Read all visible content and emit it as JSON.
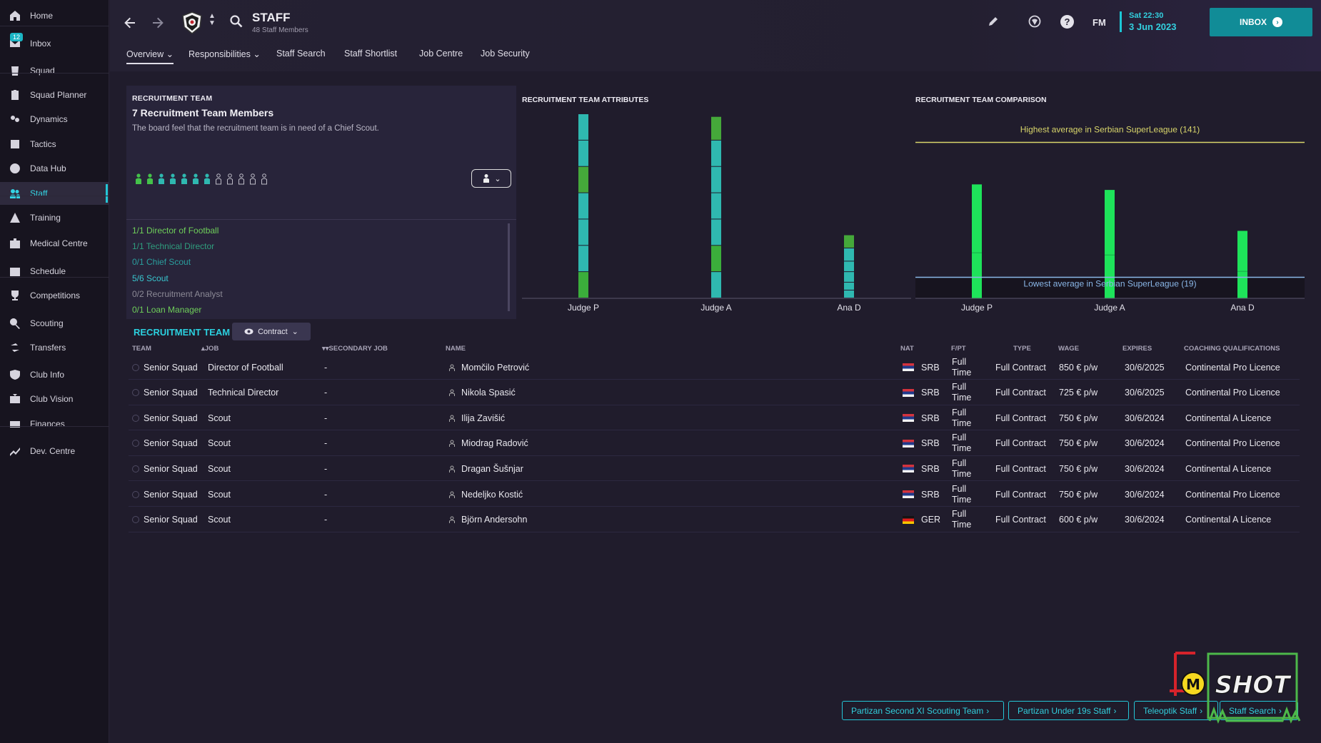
{
  "sidebar": {
    "inbox_badge": "12",
    "items": [
      {
        "label": "Home",
        "icon": "home-icon"
      },
      {
        "label": "Inbox",
        "icon": "inbox-icon"
      },
      {
        "label": "Squad",
        "icon": "squad-icon"
      },
      {
        "label": "Squad Planner",
        "icon": "clipboard-icon"
      },
      {
        "label": "Dynamics",
        "icon": "dynamics-icon"
      },
      {
        "label": "Tactics",
        "icon": "tactics-icon"
      },
      {
        "label": "Data Hub",
        "icon": "data-hub-icon"
      },
      {
        "label": "Staff",
        "icon": "staff-icon"
      },
      {
        "label": "Training",
        "icon": "training-icon"
      },
      {
        "label": "Medical Centre",
        "icon": "medical-icon"
      },
      {
        "label": "Schedule",
        "icon": "calendar-icon"
      },
      {
        "label": "Competitions",
        "icon": "trophy-icon"
      },
      {
        "label": "Scouting",
        "icon": "magnifier-icon"
      },
      {
        "label": "Transfers",
        "icon": "transfer-icon"
      },
      {
        "label": "Club Info",
        "icon": "shield-icon"
      },
      {
        "label": "Club Vision",
        "icon": "vision-icon"
      },
      {
        "label": "Finances",
        "icon": "finances-icon"
      },
      {
        "label": "Dev. Centre",
        "icon": "dev-centre-icon"
      }
    ]
  },
  "header": {
    "title": "STAFF",
    "subtitle": "48 Staff Members",
    "tabs": [
      "Overview",
      "Responsibilities",
      "Staff Search",
      "Staff Shortlist",
      "Job Centre",
      "Job Security"
    ],
    "game_label": "FM",
    "date_day": "Sat 22:30",
    "date_full": "3 Jun 2023",
    "inbox_label": "INBOX"
  },
  "team_panel": {
    "caption": "RECRUITMENT TEAM",
    "heading": "7 Recruitment Team Members",
    "description": "The board feel that the recruitment team is in need of a Chief Scout.",
    "filled_slots": 7,
    "total_slots": 12,
    "roles": [
      {
        "label": "1/1 Director of Football",
        "color": "#6fcf5a"
      },
      {
        "label": "1/1 Technical Director",
        "color": "#2f9e7e"
      },
      {
        "label": "0/1 Chief Scout",
        "color": "#2a9e9e"
      },
      {
        "label": "5/6 Scout",
        "color": "#38c6cf"
      },
      {
        "label": "0/2 Recruitment Analyst",
        "color": "#8c8a96"
      },
      {
        "label": "0/1 Loan Manager",
        "color": "#6fcf5a"
      }
    ]
  },
  "chart_data": [
    {
      "type": "bar",
      "title": "RECRUITMENT TEAM ATTRIBUTES",
      "categories": [
        "Judge P",
        "Judge A",
        "Ana D"
      ],
      "stacked": true,
      "segments": [
        [
          {
            "value": 20,
            "color": "#3bae3b"
          },
          {
            "value": 20,
            "color": "#2fb8b0"
          },
          {
            "value": 20,
            "color": "#2fb8b0"
          },
          {
            "value": 20,
            "color": "#2fb8b0"
          },
          {
            "value": 20,
            "color": "#45a83a"
          },
          {
            "value": 20,
            "color": "#2fb8b0"
          },
          {
            "value": 20,
            "color": "#2fb8b0"
          }
        ],
        [
          {
            "value": 20,
            "color": "#2fb8b0"
          },
          {
            "value": 20,
            "color": "#3bae3b"
          },
          {
            "value": 20,
            "color": "#2fb8b0"
          },
          {
            "value": 20,
            "color": "#2fb8b0"
          },
          {
            "value": 20,
            "color": "#2fb8b0"
          },
          {
            "value": 20,
            "color": "#2fb8b0"
          },
          {
            "value": 18,
            "color": "#45a83a"
          }
        ],
        [
          {
            "value": 6,
            "color": "#2fb8b0"
          },
          {
            "value": 6,
            "color": "#2fb8b0"
          },
          {
            "value": 8,
            "color": "#2fb8b0"
          },
          {
            "value": 8,
            "color": "#2fb8b0"
          },
          {
            "value": 10,
            "color": "#2fb8b0"
          },
          {
            "value": 10,
            "color": "#45a83a"
          }
        ]
      ],
      "ylim": [
        0,
        140
      ]
    },
    {
      "type": "bar",
      "title": "RECRUITMENT TEAM COMPARISON",
      "categories": [
        "Judge P",
        "Judge A",
        "Ana D"
      ],
      "values": [
        103,
        98,
        61
      ],
      "color": "#1ee35a",
      "reference_lines": [
        {
          "label": "Highest average in Serbian SuperLeague (141)",
          "value": 141,
          "color": "#d9d66b"
        },
        {
          "label": "Lowest average in Serbian SuperLeague (19)",
          "value": 19,
          "color": "#8ab7e8"
        }
      ],
      "ylim": [
        0,
        160
      ]
    }
  ],
  "table": {
    "title": "RECRUITMENT TEAM",
    "view_button": "Contract",
    "headers": [
      "TEAM",
      "JOB",
      "SECONDARY JOB",
      "NAME",
      "NAT",
      "F/PT",
      "TYPE",
      "WAGE",
      "EXPIRES",
      "COACHING QUALIFICATIONS"
    ],
    "rows": [
      {
        "team": "Senior Squad",
        "job": "Director of Football",
        "secondary": "-",
        "name": "Momčilo Petrović",
        "nat": "SRB",
        "flag": "srb",
        "fpt1": "Full",
        "fpt2": "Time",
        "type": "Full Contract",
        "wage": "850 € p/w",
        "expires": "30/6/2025",
        "qual": "Continental Pro Licence"
      },
      {
        "team": "Senior Squad",
        "job": "Technical Director",
        "secondary": "-",
        "name": "Nikola Spasić",
        "nat": "SRB",
        "flag": "srb",
        "fpt1": "Full",
        "fpt2": "Time",
        "type": "Full Contract",
        "wage": "725 € p/w",
        "expires": "30/6/2025",
        "qual": "Continental Pro Licence"
      },
      {
        "team": "Senior Squad",
        "job": "Scout",
        "secondary": "-",
        "name": "Ilija Zavišić",
        "nat": "SRB",
        "flag": "srb",
        "fpt1": "Full",
        "fpt2": "Time",
        "type": "Full Contract",
        "wage": "750 € p/w",
        "expires": "30/6/2024",
        "qual": "Continental A Licence"
      },
      {
        "team": "Senior Squad",
        "job": "Scout",
        "secondary": "-",
        "name": "Miodrag Radović",
        "nat": "SRB",
        "flag": "srb",
        "fpt1": "Full",
        "fpt2": "Time",
        "type": "Full Contract",
        "wage": "750 € p/w",
        "expires": "30/6/2024",
        "qual": "Continental Pro Licence"
      },
      {
        "team": "Senior Squad",
        "job": "Scout",
        "secondary": "-",
        "name": "Dragan Šušnjar",
        "nat": "SRB",
        "flag": "srb",
        "fpt1": "Full",
        "fpt2": "Time",
        "type": "Full Contract",
        "wage": "750 € p/w",
        "expires": "30/6/2024",
        "qual": "Continental A Licence"
      },
      {
        "team": "Senior Squad",
        "job": "Scout",
        "secondary": "-",
        "name": "Nedeljko Kostić",
        "nat": "SRB",
        "flag": "srb",
        "fpt1": "Full",
        "fpt2": "Time",
        "type": "Full Contract",
        "wage": "750 € p/w",
        "expires": "30/6/2024",
        "qual": "Continental Pro Licence"
      },
      {
        "team": "Senior Squad",
        "job": "Scout",
        "secondary": "-",
        "name": "Björn Andersohn",
        "nat": "GER",
        "flag": "ger",
        "fpt1": "Full",
        "fpt2": "Time",
        "type": "Full Contract",
        "wage": "600 € p/w",
        "expires": "30/6/2024",
        "qual": "Continental A Licence"
      }
    ]
  },
  "bottom_links": [
    "Partizan Second XI Scouting Team",
    "Partizan Under 19s Staff",
    "Teleoptik Staff",
    "Staff Search"
  ],
  "watermark": {
    "letter": "M",
    "text": "SHOT"
  }
}
